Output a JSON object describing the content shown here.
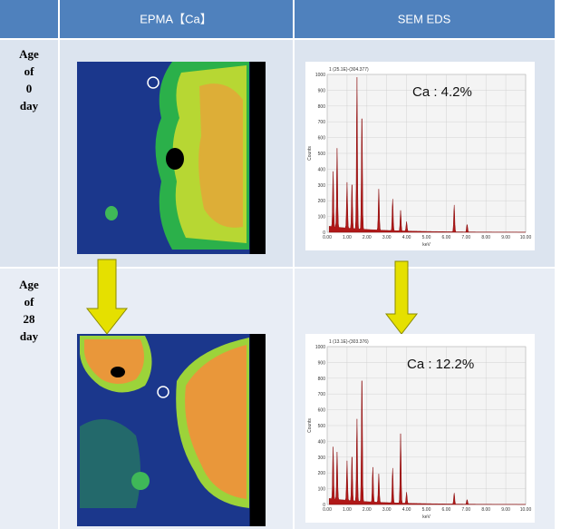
{
  "header": {
    "columns": [
      "EPMA【Ca】",
      "SEM EDS"
    ]
  },
  "rows": [
    {
      "label": [
        "Age",
        "of",
        "0",
        "day"
      ],
      "eds": {
        "title": "1 (25.1E)-(304.377)",
        "annotation": "Ca : 4.2%"
      }
    },
    {
      "label": [
        "Age",
        "of",
        "28",
        "day"
      ],
      "eds": {
        "title": "1 (13.1E)-(303.376)",
        "annotation": "Ca : 12.2%"
      }
    }
  ],
  "spectrum": {
    "y_label": "Counts",
    "x_label": "keV",
    "yticks": [
      0,
      100,
      200,
      300,
      400,
      500,
      600,
      700,
      800,
      900,
      1000
    ],
    "xticks": [
      "0.00",
      "1.00",
      "2.00",
      "3.00",
      "4.00",
      "5.00",
      "6.00",
      "7.00",
      "8.00",
      "9.00",
      "10.00"
    ]
  }
}
